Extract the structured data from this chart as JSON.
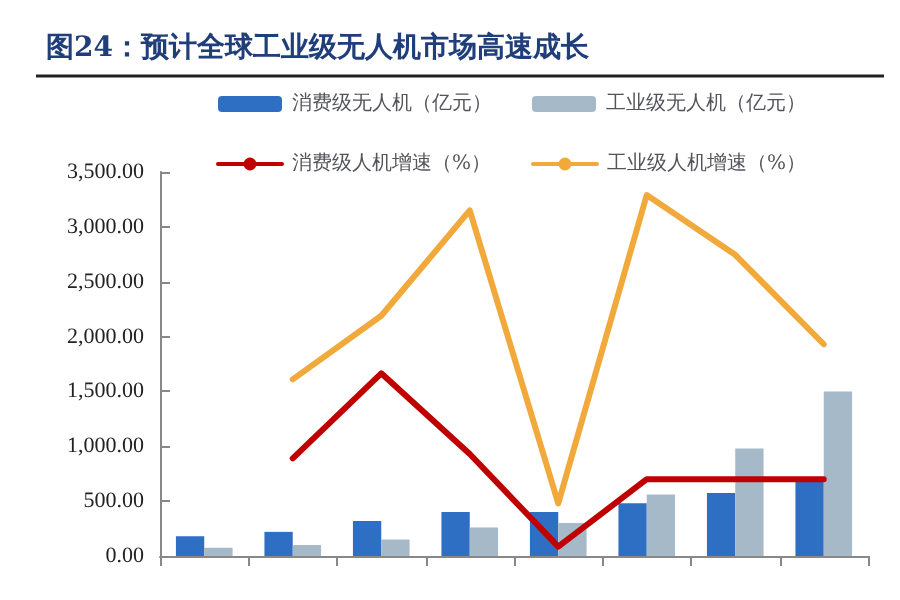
{
  "chart_data": {
    "type": "bar",
    "title": "图24：预计全球工业级无人机市场高速成长",
    "categories": [
      null,
      null,
      null,
      null,
      null,
      null,
      null,
      null
    ],
    "series": [
      {
        "name": "消费级无人机（亿元）",
        "color": "#2e6fc4",
        "values": [
          180,
          220,
          320,
          400,
          400,
          480,
          575,
          700
        ]
      },
      {
        "name": "工业级无人机（亿元）",
        "color": "#a6b9c8",
        "values": [
          75,
          100,
          150,
          260,
          300,
          560,
          980,
          1500
        ]
      },
      {
        "name": "消费级人机增速（%）",
        "type": "line",
        "color": "#c00000",
        "values": [
          null,
          890,
          1665,
          930,
          85,
          700,
          700,
          700
        ]
      },
      {
        "name": "工业级人机增速（%）",
        "type": "line",
        "color": "#f2a93b",
        "values": [
          null,
          1610,
          2190,
          3150,
          480,
          3290,
          2745,
          1930
        ]
      }
    ],
    "ylim": [
      0,
      3500
    ],
    "yticks": [
      {
        "value": 0,
        "label": "0.00"
      },
      {
        "value": 500,
        "label": "500.00"
      },
      {
        "value": 1000,
        "label": "1,000.00"
      },
      {
        "value": 1500,
        "label": "1,500.00"
      },
      {
        "value": 2000,
        "label": "2,000.00"
      },
      {
        "value": 2500,
        "label": "2,500.00"
      },
      {
        "value": 3000,
        "label": "3,000.00"
      },
      {
        "value": 3500,
        "label": "3,500.00"
      }
    ],
    "grid": false,
    "legend": "top",
    "marker": "none",
    "line_style": "solid"
  }
}
